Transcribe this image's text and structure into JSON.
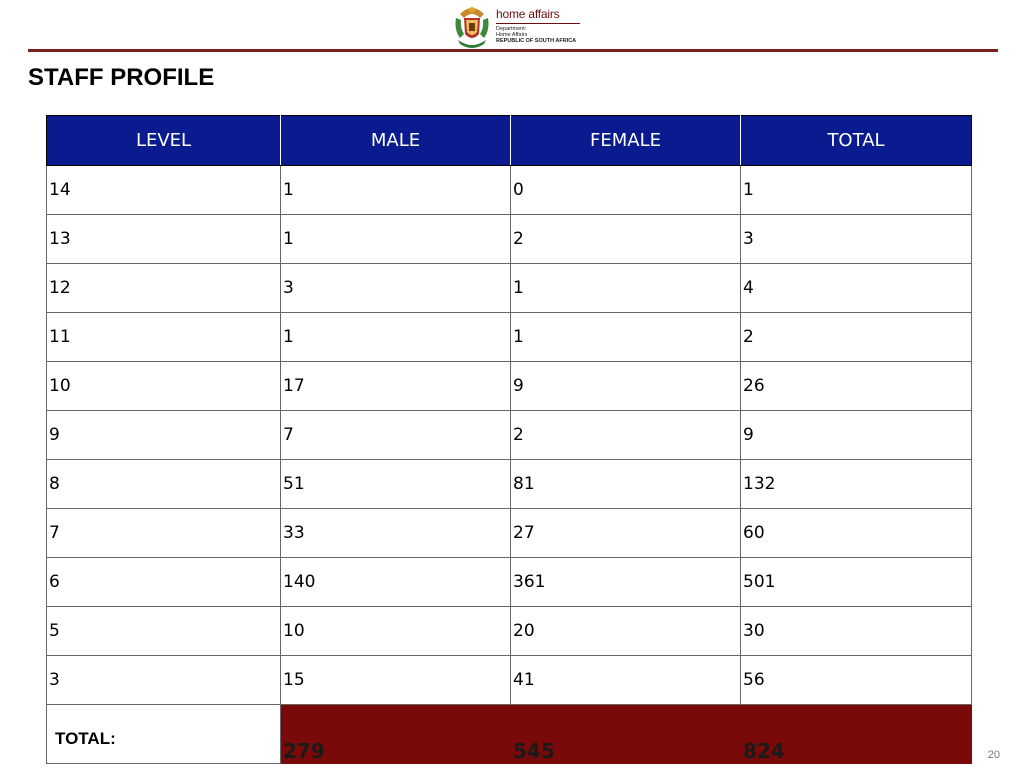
{
  "header": {
    "logo": {
      "brand": "home affairs",
      "line1": "Department:",
      "line2": "Home Affairs",
      "line3": "REPUBLIC OF SOUTH AFRICA"
    },
    "title": "STAFF PROFILE",
    "rule_color": "#7a1f1f"
  },
  "table": {
    "headers": [
      "LEVEL",
      "MALE",
      "FEMALE",
      "TOTAL"
    ],
    "header_bg": "#0a1a8f",
    "rows": [
      [
        "14",
        "1",
        "0",
        "1"
      ],
      [
        "13",
        "1",
        "2",
        "3"
      ],
      [
        "12",
        "3",
        "1",
        "4"
      ],
      [
        "11",
        "1",
        "1",
        "2"
      ],
      [
        "10",
        "17",
        "9",
        "26"
      ],
      [
        "9",
        "7",
        "2",
        "9"
      ],
      [
        "8",
        "51",
        "81",
        "132"
      ],
      [
        "7",
        "33",
        "27",
        "60"
      ],
      [
        "6",
        "140",
        "361",
        "501"
      ],
      [
        "5",
        "10",
        "20",
        "30"
      ],
      [
        "3",
        "15",
        "41",
        "56"
      ]
    ],
    "total": {
      "label": "TOTAL:",
      "male": "279",
      "female": "545",
      "total": "824",
      "bg": "#7a0a0a"
    }
  },
  "footer": {
    "page_number": "20"
  }
}
